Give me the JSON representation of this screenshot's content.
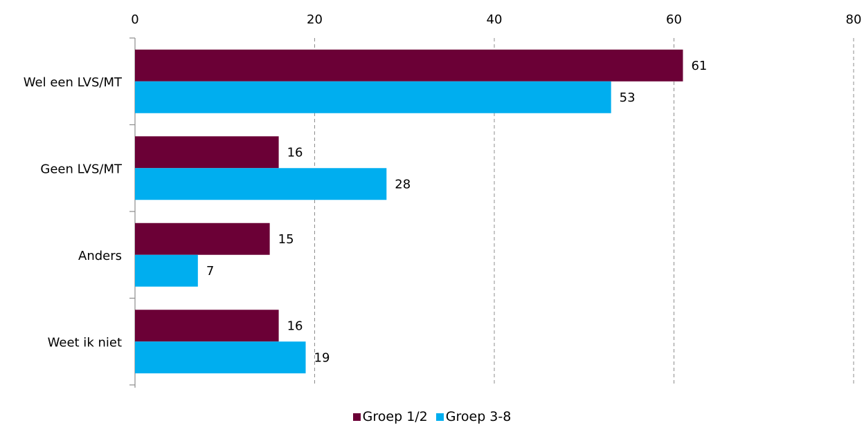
{
  "chart_data": {
    "type": "bar",
    "orientation": "horizontal",
    "categories": [
      "Wel een LVS/MT",
      "Geen LVS/MT",
      "Anders",
      "Weet ik niet"
    ],
    "series": [
      {
        "name": "Groep 1/2",
        "values": [
          61,
          16,
          15,
          16
        ],
        "color": "#6b0036"
      },
      {
        "name": "Groep 3-8",
        "values": [
          53,
          28,
          7,
          19
        ],
        "color": "#00aeef"
      }
    ],
    "xlim": [
      0,
      80
    ],
    "xticks": [
      "0",
      "20",
      "40",
      "60",
      "80"
    ],
    "x_axis_position": "top",
    "grid": "vertical dashed",
    "legend_position": "bottom"
  }
}
